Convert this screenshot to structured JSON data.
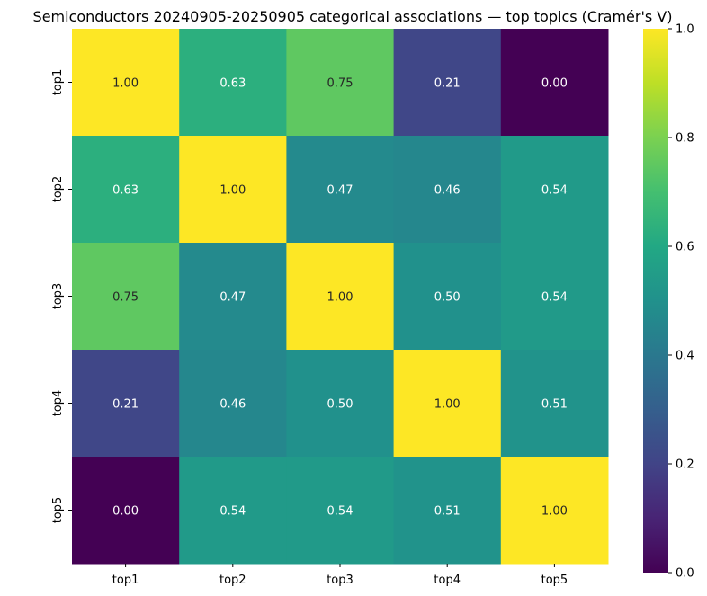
{
  "chart_data": {
    "type": "heatmap",
    "title": "Semiconductors 20240905-20250905 categorical associations — top topics (Cramér's V)",
    "xlabel": "",
    "ylabel": "",
    "x_categories": [
      "top1",
      "top2",
      "top3",
      "top4",
      "top5"
    ],
    "y_categories": [
      "top1",
      "top2",
      "top3",
      "top4",
      "top5"
    ],
    "values": [
      [
        1.0,
        0.63,
        0.75,
        0.21,
        0.0
      ],
      [
        0.63,
        1.0,
        0.47,
        0.46,
        0.54
      ],
      [
        0.75,
        0.47,
        1.0,
        0.5,
        0.54
      ],
      [
        0.21,
        0.46,
        0.5,
        1.0,
        0.51
      ],
      [
        0.0,
        0.54,
        0.54,
        0.51,
        1.0
      ]
    ],
    "value_format": "0.00",
    "colormap": "viridis",
    "vmin": 0.0,
    "vmax": 1.0,
    "colorbar": {
      "ticks": [
        "0.0",
        "0.2",
        "0.4",
        "0.6",
        "0.8",
        "1.0"
      ]
    },
    "grid": false
  }
}
